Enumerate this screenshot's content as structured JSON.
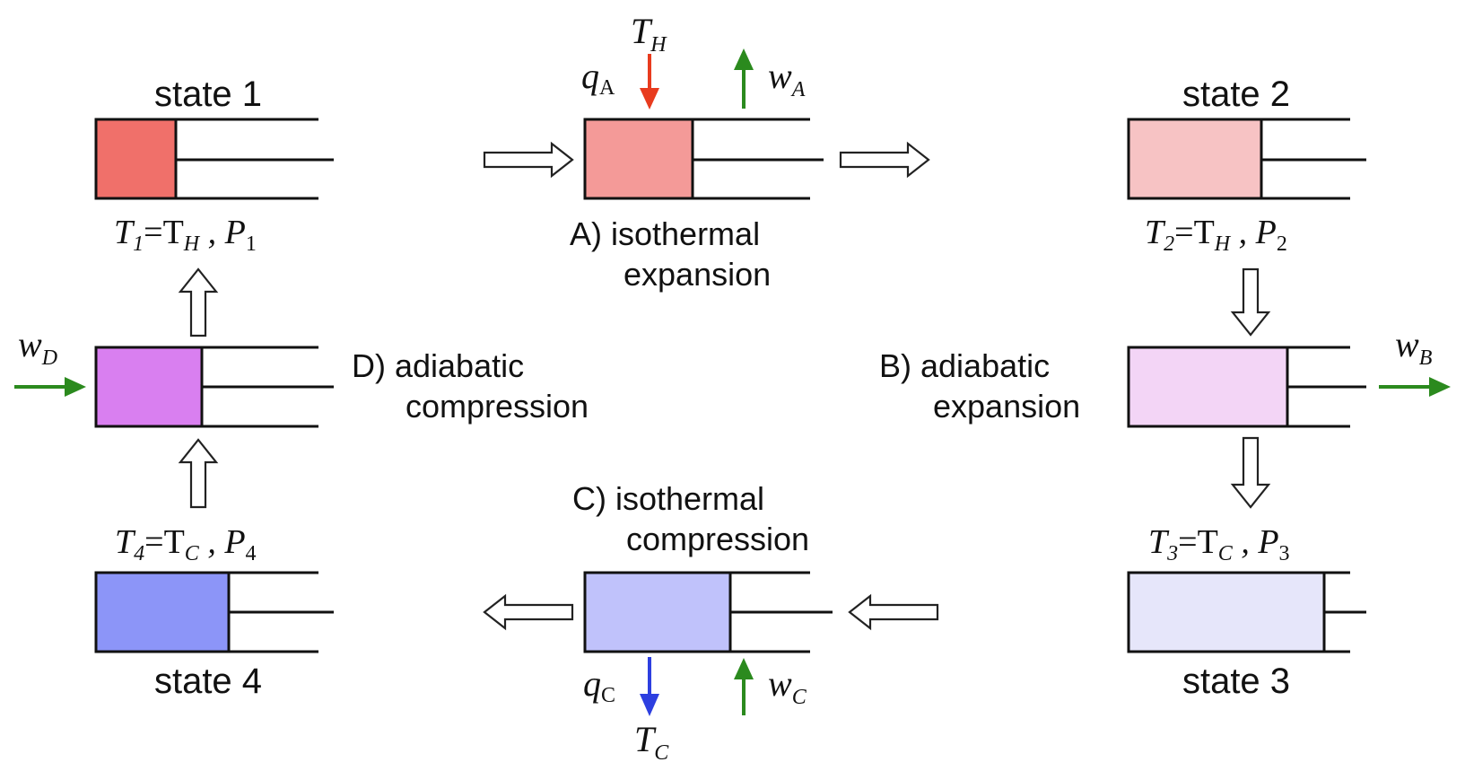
{
  "colors": {
    "state1_gas": "#F0706A",
    "processA_gas": "#F49A98",
    "state2_gas": "#F7C3C4",
    "processB_gas": "#F3D5F6",
    "state3_gas": "#E6E6FA",
    "processC_gas": "#C0C2FB",
    "state4_gas": "#8C95F8",
    "processD_gas": "#D97FF0",
    "heat_in_arrow": "#E83B1E",
    "heat_out_arrow": "#2D3FE0",
    "work_arrow": "#2B8A1E"
  },
  "states": {
    "s1": {
      "label": "state 1",
      "T": "T",
      "Tsub": "1",
      "eq": "=T",
      "Hsub": "H",
      "P": " , P",
      "Psub": "1"
    },
    "s2": {
      "label": "state 2",
      "T": "T",
      "Tsub": "2",
      "eq": "=T",
      "Hsub": "H",
      "P": " , P",
      "Psub": "2"
    },
    "s3": {
      "label": "state 3",
      "T": "T",
      "Tsub": "3",
      "eq": "=T",
      "Csub": "C",
      "P": " , P",
      "Psub": "3"
    },
    "s4": {
      "label": "state 4",
      "T": "T",
      "Tsub": "4",
      "eq": "=T",
      "Csub": "C",
      "P": " , P",
      "Psub": "4"
    }
  },
  "processes": {
    "A": {
      "line1": "A) isothermal",
      "line2": "expansion"
    },
    "B": {
      "line1": "B) adiabatic",
      "line2": "expansion"
    },
    "C": {
      "line1": "C) isothermal",
      "line2": "compression"
    },
    "D": {
      "line1": "D) adiabatic",
      "line2": "compression"
    }
  },
  "energy": {
    "TH": {
      "main": "T",
      "sub": "H"
    },
    "TC": {
      "main": "T",
      "sub": "C"
    },
    "qA": {
      "main": "q",
      "sub": "A"
    },
    "qC": {
      "main": "q",
      "sub": "C"
    },
    "wA": {
      "main": "w",
      "sub": "A"
    },
    "wB": {
      "main": "w",
      "sub": "B"
    },
    "wC": {
      "main": "w",
      "sub": "C"
    },
    "wD": {
      "main": "w",
      "sub": "D"
    }
  }
}
